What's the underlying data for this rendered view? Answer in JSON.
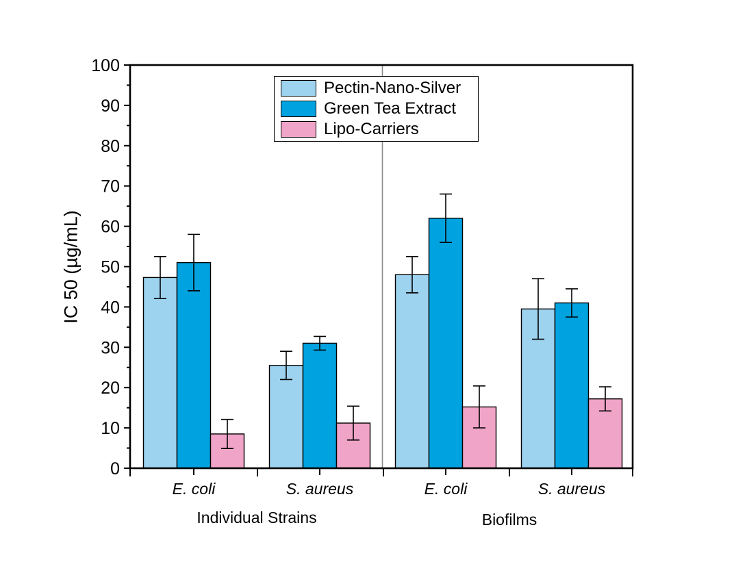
{
  "chart_data": {
    "type": "bar",
    "title": "",
    "ylabel": "IC 50 (µg/mL)",
    "xlabel": "",
    "ylim": [
      0,
      100
    ],
    "ytick_interval": 10,
    "yminor_interval": 5,
    "grid": false,
    "legend_position": "top-center-inside",
    "panels": [
      {
        "label": "Individual Strains",
        "categories": [
          "E. coli",
          "S. aureus"
        ]
      },
      {
        "label": "Biofilms",
        "categories": [
          "E. coli",
          "S. aureus"
        ]
      }
    ],
    "categories": [
      "E. coli",
      "S. aureus",
      "E. coli",
      "S. aureus"
    ],
    "series": [
      {
        "name": "Pectin-Nano-Silver",
        "color": "#9ED3EF",
        "values": [
          47.3,
          25.5,
          48.0,
          39.5
        ],
        "errors": [
          5.2,
          3.5,
          4.5,
          7.5
        ]
      },
      {
        "name": "Green Tea Extract",
        "color": "#00A3E0",
        "values": [
          51.0,
          31.0,
          62.0,
          41.0
        ],
        "errors": [
          7.0,
          1.7,
          6.0,
          3.5
        ]
      },
      {
        "name": "Lipo-Carriers",
        "color": "#F0A4C7",
        "values": [
          8.5,
          11.2,
          15.2,
          17.2
        ],
        "errors": [
          3.6,
          4.2,
          5.2,
          3.0
        ]
      }
    ],
    "bar_outline_color": "#000000",
    "error_bar_color": "#000000",
    "frame_color": "#000000",
    "divider_color": "#8a8a8a",
    "background_color": "#ffffff"
  }
}
